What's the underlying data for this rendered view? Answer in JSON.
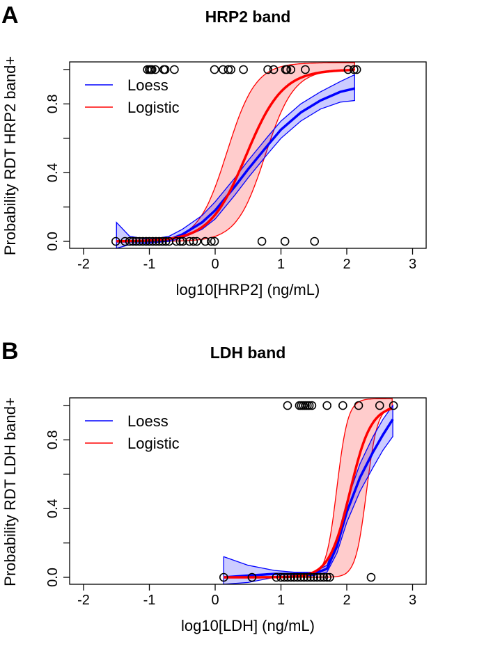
{
  "chart_data": [
    {
      "type": "line",
      "panel_letter": "A",
      "title": "HRP2 band",
      "xlabel": "log10[HRP2] (ng/mL)",
      "ylabel": "Probability RDT HRP2 band+",
      "xlim": [
        -2.2,
        3.2
      ],
      "ylim": [
        -0.04,
        1.04
      ],
      "xticks": [
        -2,
        -1,
        0,
        1,
        2,
        3
      ],
      "xtick_labels": [
        "-2",
        "-1",
        "0",
        "1",
        "2",
        "3"
      ],
      "yticks": [
        0.0,
        0.4,
        0.8
      ],
      "ytick_labels": [
        "0.0",
        "0.4",
        "0.8"
      ],
      "grid": false,
      "legend": {
        "placement": "top-left",
        "entries": [
          {
            "label": "Loess",
            "color": "#0000ff"
          },
          {
            "label": "Logistic",
            "color": "#ff0000"
          }
        ]
      },
      "points_y1": [
        -1.03,
        -1.0,
        -0.98,
        -0.96,
        -0.91,
        -0.78,
        -0.76,
        -0.62,
        -0.01,
        0.12,
        0.2,
        0.24,
        0.43,
        0.8,
        0.89,
        1.07,
        1.09,
        1.15,
        1.37,
        2.02,
        2.11,
        2.15
      ],
      "points_y0": [
        -1.51,
        -1.37,
        -1.3,
        -1.25,
        -1.2,
        -1.15,
        -1.1,
        -1.05,
        -1.0,
        -0.95,
        -0.9,
        -0.85,
        -0.8,
        -0.75,
        -0.7,
        -0.59,
        -0.53,
        -0.49,
        -0.39,
        -0.33,
        -0.28,
        -0.15,
        -0.06,
        -0.01,
        0.71,
        1.06,
        1.51
      ],
      "logistic": {
        "midpoint": 0.47,
        "slope": 3.6,
        "upper_midpoint": 0.18,
        "upper_slope": 4.6,
        "lower_midpoint": 0.76,
        "lower_slope": 4.6,
        "xrange": [
          -1.5,
          2.12
        ]
      },
      "loess": {
        "x": [
          -1.5,
          -1.3,
          -1.0,
          -0.7,
          -0.5,
          -0.2,
          0.0,
          0.3,
          0.5,
          0.8,
          1.0,
          1.3,
          1.6,
          1.9,
          2.12
        ],
        "y": [
          0.0,
          0.0,
          0.0,
          0.01,
          0.04,
          0.11,
          0.18,
          0.32,
          0.42,
          0.56,
          0.65,
          0.75,
          0.82,
          0.87,
          0.89
        ],
        "upper": [
          0.11,
          0.03,
          0.01,
          0.03,
          0.07,
          0.15,
          0.23,
          0.37,
          0.47,
          0.61,
          0.7,
          0.8,
          0.87,
          0.93,
          0.97
        ],
        "lower": [
          -0.04,
          -0.02,
          -0.01,
          0.0,
          0.02,
          0.07,
          0.13,
          0.27,
          0.37,
          0.51,
          0.6,
          0.7,
          0.77,
          0.81,
          0.82
        ]
      }
    },
    {
      "type": "line",
      "panel_letter": "B",
      "title": "LDH band",
      "xlabel": "log10[LDH] (ng/mL)",
      "ylabel": "Probability RDT LDH band+",
      "xlim": [
        -2.2,
        3.2
      ],
      "ylim": [
        -0.04,
        1.04
      ],
      "xticks": [
        -2,
        -1,
        0,
        1,
        2,
        3
      ],
      "xtick_labels": [
        "-2",
        "-1",
        "0",
        "1",
        "2",
        "3"
      ],
      "yticks": [
        0.0,
        0.4,
        0.8
      ],
      "ytick_labels": [
        "0.0",
        "0.4",
        "0.8"
      ],
      "grid": false,
      "legend": {
        "placement": "top-left",
        "entries": [
          {
            "label": "Loess",
            "color": "#0000ff"
          },
          {
            "label": "Logistic",
            "color": "#ff0000"
          }
        ]
      },
      "points_y1": [
        1.1,
        1.28,
        1.31,
        1.34,
        1.37,
        1.4,
        1.43,
        1.47,
        1.7,
        1.94,
        2.18,
        2.5,
        2.71
      ],
      "points_y0": [
        0.13,
        0.56,
        0.93,
        1.0,
        1.05,
        1.1,
        1.15,
        1.2,
        1.25,
        1.3,
        1.35,
        1.4,
        1.45,
        1.5,
        1.55,
        1.6,
        1.65,
        1.7,
        1.74,
        2.37
      ],
      "logistic": {
        "midpoint": 2.05,
        "slope": 6.3,
        "upper_midpoint": 1.85,
        "upper_slope": 12,
        "lower_midpoint": 2.3,
        "lower_slope": 12,
        "xrange": [
          0.13,
          2.7
        ]
      },
      "loess": {
        "x": [
          0.13,
          0.5,
          0.9,
          1.2,
          1.5,
          1.7,
          1.85,
          2.0,
          2.2,
          2.4,
          2.55,
          2.7
        ],
        "y": [
          0.0,
          0.01,
          0.02,
          0.02,
          0.02,
          0.05,
          0.18,
          0.38,
          0.58,
          0.73,
          0.83,
          0.92
        ],
        "upper": [
          0.12,
          0.07,
          0.04,
          0.03,
          0.03,
          0.07,
          0.22,
          0.44,
          0.66,
          0.82,
          0.92,
          1.0
        ],
        "lower": [
          -0.04,
          -0.03,
          0.0,
          0.01,
          0.01,
          0.03,
          0.14,
          0.32,
          0.5,
          0.64,
          0.74,
          0.82
        ]
      }
    }
  ]
}
